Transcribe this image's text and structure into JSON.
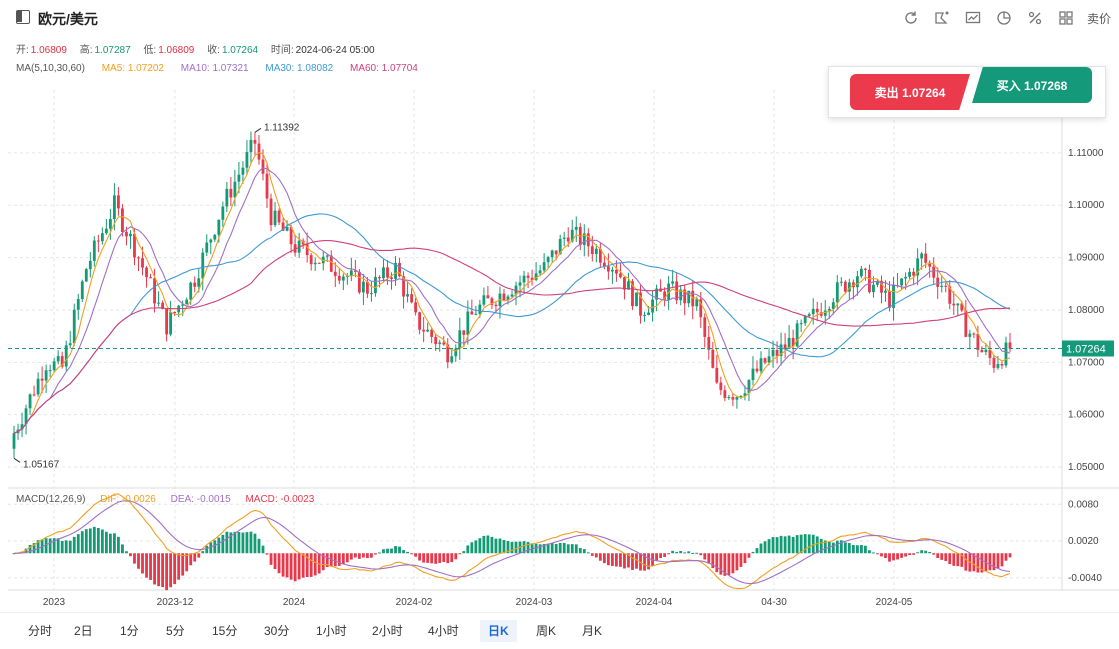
{
  "header": {
    "title": "欧元/美元",
    "sell_label": "卖价",
    "tools": [
      "refresh-icon",
      "draw-icon",
      "indicator-icon",
      "pie-chart-icon",
      "percent-icon",
      "layout-icon"
    ]
  },
  "ohlc": {
    "open_label": "开:",
    "open": "1.06809",
    "high_label": "高:",
    "high": "1.07287",
    "low_label": "低:",
    "low": "1.06809",
    "close_label": "收:",
    "close": "1.07264",
    "time_label": "时间:",
    "time": "2024-06-24 05:00"
  },
  "ma": {
    "label": "MA(5,10,30,60)",
    "ma5": "MA5: 1.07202",
    "ma10": "MA10: 1.07321",
    "ma30": "MA30: 1.08082",
    "ma60": "MA60: 1.07704"
  },
  "trade": {
    "sell": "卖出 1.07264",
    "buy": "买入 1.07268"
  },
  "macd": {
    "label": "MACD(12,26,9)",
    "dif": "DIF: -0.0026",
    "dea": "DEA: -0.0015",
    "macd": "MACD: -0.0023"
  },
  "periods": [
    "分时",
    "2日",
    "1分",
    "5分",
    "15分",
    "30分",
    "1小时",
    "2小时",
    "4小时",
    "日K",
    "周K",
    "月K"
  ],
  "active_period": "日K",
  "colors": {
    "up": "#149a74",
    "down": "#e6394b",
    "ma5": "#f0a020",
    "ma10": "#a070c8",
    "ma30": "#3d9ad6",
    "ma60": "#d0407a",
    "grid": "#e6e6e6",
    "price_tag": "#14997a"
  },
  "chart_data": {
    "type": "candlestick",
    "x_ticks": [
      "2023",
      "2023-12",
      "2024",
      "2024-02",
      "2024-03",
      "2024-04",
      "04-30",
      "2024-05"
    ],
    "y_ticks": [
      "1.11000",
      "1.10000",
      "1.09000",
      "1.08000",
      "1.07000",
      "1.06000",
      "1.05000"
    ],
    "y_range": [
      1.046,
      1.122
    ],
    "last_price": "1.07264",
    "last_price_value": 1.07264,
    "max_label": "1.11392",
    "max_value": 1.11392,
    "min_label": "1.05167",
    "min_value": 1.05167,
    "macd_ticks": [
      "0.0080",
      "0.0020",
      "-0.0040"
    ],
    "macd_range": [
      -0.006,
      0.01
    ],
    "control_points": [
      [
        0,
        1.0565
      ],
      [
        8,
        1.07
      ],
      [
        12,
        1.069
      ],
      [
        18,
        1.088
      ],
      [
        25,
        1.1
      ],
      [
        30,
        1.092
      ],
      [
        38,
        1.077
      ],
      [
        45,
        1.086
      ],
      [
        52,
        1.1
      ],
      [
        60,
        1.112
      ],
      [
        64,
        1.098
      ],
      [
        70,
        1.092
      ],
      [
        80,
        1.088
      ],
      [
        88,
        1.084
      ],
      [
        95,
        1.088
      ],
      [
        100,
        1.078
      ],
      [
        108,
        1.072
      ],
      [
        115,
        1.08
      ],
      [
        125,
        1.085
      ],
      [
        132,
        1.088
      ],
      [
        138,
        1.095
      ],
      [
        144,
        1.092
      ],
      [
        150,
        1.088
      ],
      [
        156,
        1.08
      ],
      [
        163,
        1.084
      ],
      [
        170,
        1.081
      ],
      [
        175,
        1.065
      ],
      [
        180,
        1.064
      ],
      [
        187,
        1.07
      ],
      [
        192,
        1.073
      ],
      [
        198,
        1.078
      ],
      [
        204,
        1.083
      ],
      [
        210,
        1.087
      ],
      [
        218,
        1.082
      ],
      [
        226,
        1.09
      ],
      [
        232,
        1.084
      ],
      [
        236,
        1.078
      ],
      [
        241,
        1.072
      ],
      [
        244,
        1.07
      ],
      [
        248,
        1.0726
      ]
    ]
  }
}
